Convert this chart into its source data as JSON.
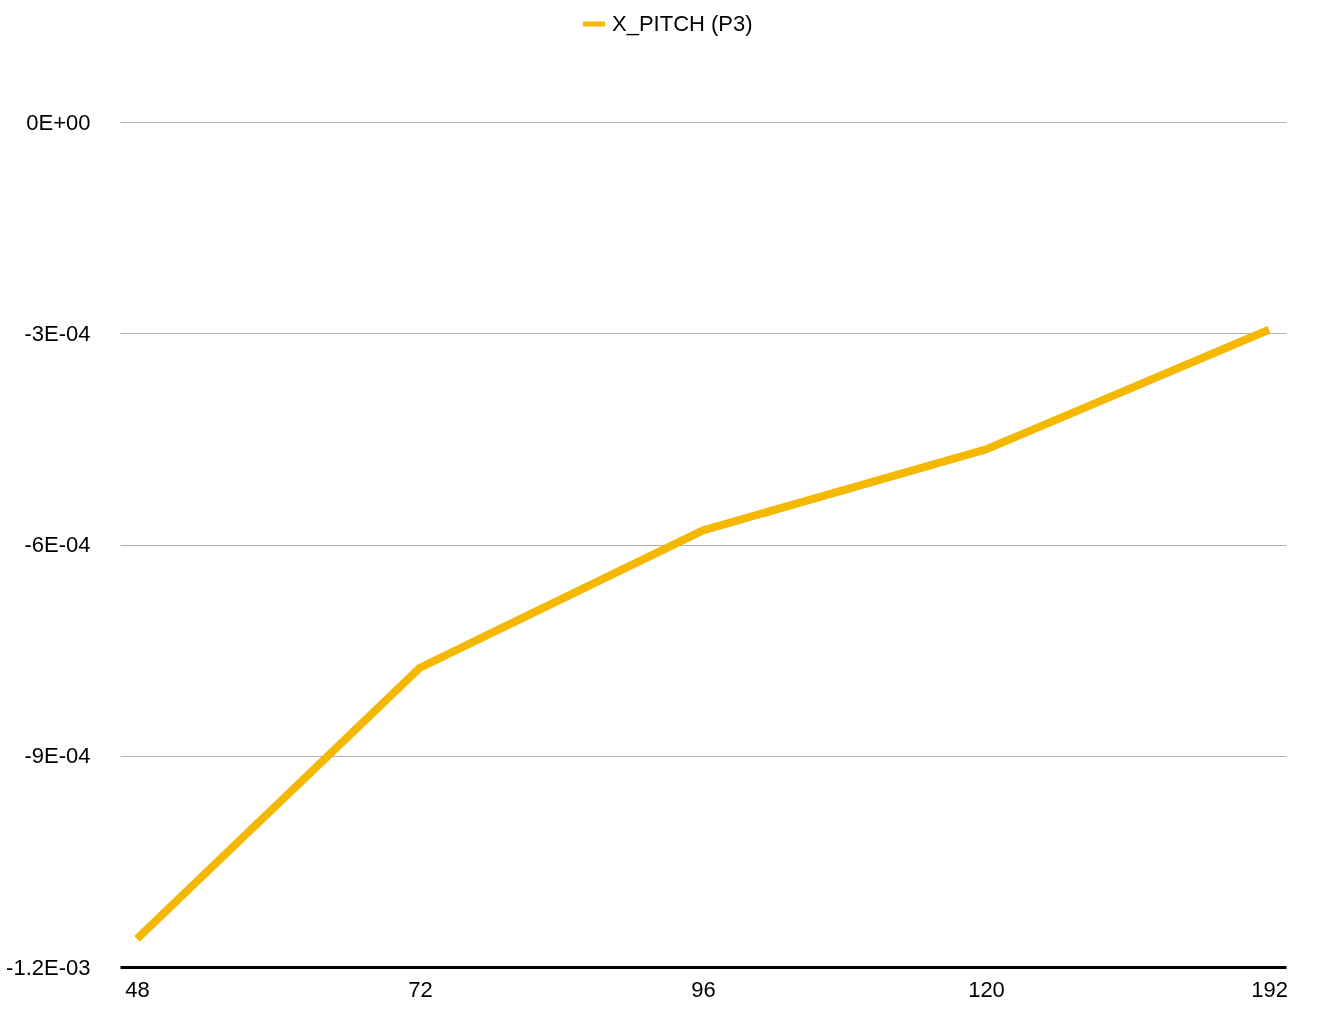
{
  "chart_data": {
    "type": "line",
    "categories": [
      "48",
      "72",
      "96",
      "120",
      "192"
    ],
    "series": [
      {
        "name": "X_PITCH (P3)",
        "color": "#f5b800",
        "values": [
          -0.00116,
          -0.000775,
          -0.00058,
          -0.000465,
          -0.000295
        ]
      }
    ],
    "ylim": [
      -0.0012,
      0
    ],
    "yticks": [
      {
        "value": -0.0012,
        "label": "-1.2E-03"
      },
      {
        "value": -0.0009,
        "label": "-9E-04"
      },
      {
        "value": -0.0006,
        "label": "-6E-04"
      },
      {
        "value": -0.0003,
        "label": "-3E-04"
      },
      {
        "value": 0,
        "label": "0E+00"
      }
    ],
    "grid": "y",
    "legend": "top",
    "marker": "none",
    "line_style": "solid"
  }
}
